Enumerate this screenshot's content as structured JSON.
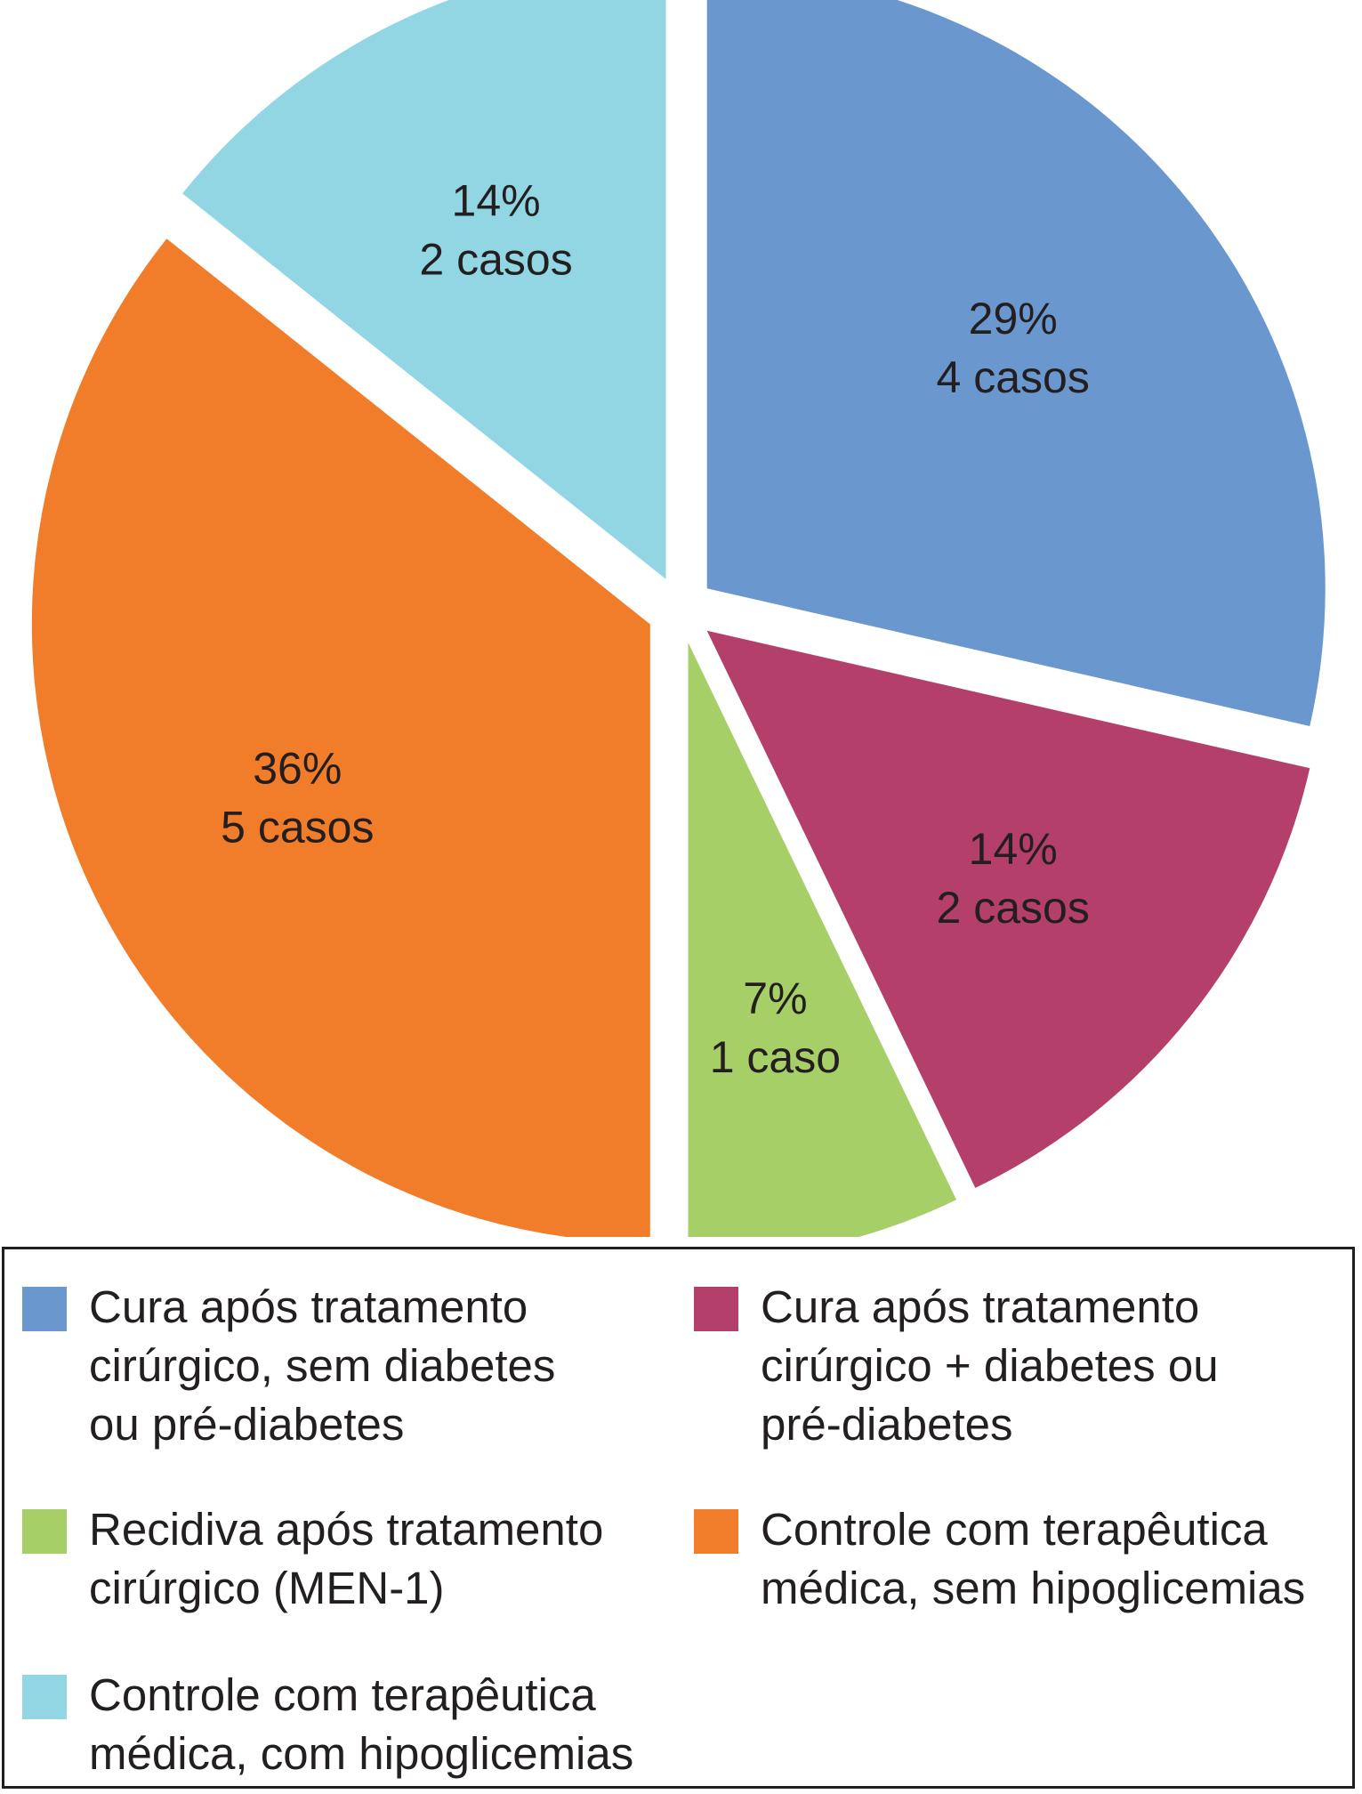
{
  "chart_data": {
    "type": "pie",
    "start_angle_deg": 0,
    "direction": "clockwise",
    "slices": [
      {
        "legend": "Cura após tratamento\ncirúrgico, sem diabetes\nou pré-diabetes",
        "percent_label": "29%",
        "cases_label": "4 casos",
        "value": 4,
        "color": "#6a97ce"
      },
      {
        "legend": "Cura após tratamento\ncirúrgico + diabetes ou\npré-diabetes",
        "percent_label": "14%",
        "cases_label": "2 casos",
        "value": 2,
        "color": "#b33f6a"
      },
      {
        "legend": "Recidiva após tratamento\ncirúrgico (MEN-1)",
        "percent_label": "7%",
        "cases_label": "1 caso",
        "value": 1,
        "color": "#a6cf68"
      },
      {
        "legend": "Controle com terapêutica\nmédica, sem hipoglicemias",
        "percent_label": "36%",
        "cases_label": "5 casos",
        "value": 5,
        "color": "#f17d2b"
      },
      {
        "legend": "Controle com terapêutica\nmédica, com hipoglicemias",
        "percent_label": "14%",
        "cases_label": "2 casos",
        "value": 2,
        "color": "#92d6e3"
      }
    ],
    "legend_position": "bottom"
  }
}
